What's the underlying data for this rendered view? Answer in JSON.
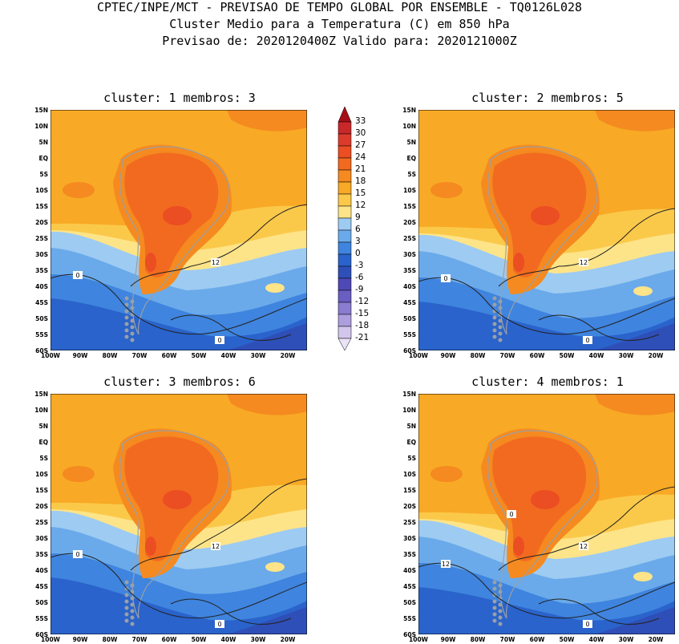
{
  "header": {
    "line1": "CPTEC/INPE/MCT - PREVISAO DE TEMPO GLOBAL POR ENSEMBLE - TQ0126L028",
    "line2": "Cluster Medio para a Temperatura (C) em 850 hPa",
    "line3": "Previsao de: 2020120400Z   Valido para: 2020121000Z"
  },
  "panels": [
    {
      "title": "cluster: 1  membros: 3",
      "contour_labels": [
        "12",
        "0",
        "0"
      ]
    },
    {
      "title": "cluster: 2  membros: 5",
      "contour_labels": [
        "12",
        "0",
        "0"
      ]
    },
    {
      "title": "cluster: 3  membros: 6",
      "contour_labels": [
        "12",
        "0",
        "0"
      ]
    },
    {
      "title": "cluster: 4  membros: 1",
      "contour_labels": [
        "12",
        "12",
        "0",
        "0"
      ]
    }
  ],
  "lat_ticks": [
    "15N",
    "10N",
    "5N",
    "EQ",
    "5S",
    "10S",
    "15S",
    "20S",
    "25S",
    "30S",
    "35S",
    "40S",
    "45S",
    "50S",
    "55S",
    "60S"
  ],
  "lon_ticks": [
    "100W",
    "90W",
    "80W",
    "70W",
    "60W",
    "50W",
    "40W",
    "30W",
    "20W"
  ],
  "colorbar": {
    "labels": [
      "33",
      "30",
      "27",
      "24",
      "21",
      "18",
      "15",
      "12",
      "9",
      "6",
      "3",
      "0",
      "-3",
      "-6",
      "-9",
      "-12",
      "-15",
      "-18",
      "-21"
    ],
    "colors": [
      "#a50f15",
      "#c8282a",
      "#dc3b2b",
      "#ea4e22",
      "#f26a1f",
      "#f58a20",
      "#f8a925",
      "#fbc94a",
      "#fde489",
      "#9ecbf2",
      "#6aaaea",
      "#3f84de",
      "#2a63cb",
      "#2f4fb8",
      "#4f49b5",
      "#6a5ec3",
      "#8a7ccf",
      "#ad9edd",
      "#d3c6ec",
      "#eae2f6"
    ]
  }
}
